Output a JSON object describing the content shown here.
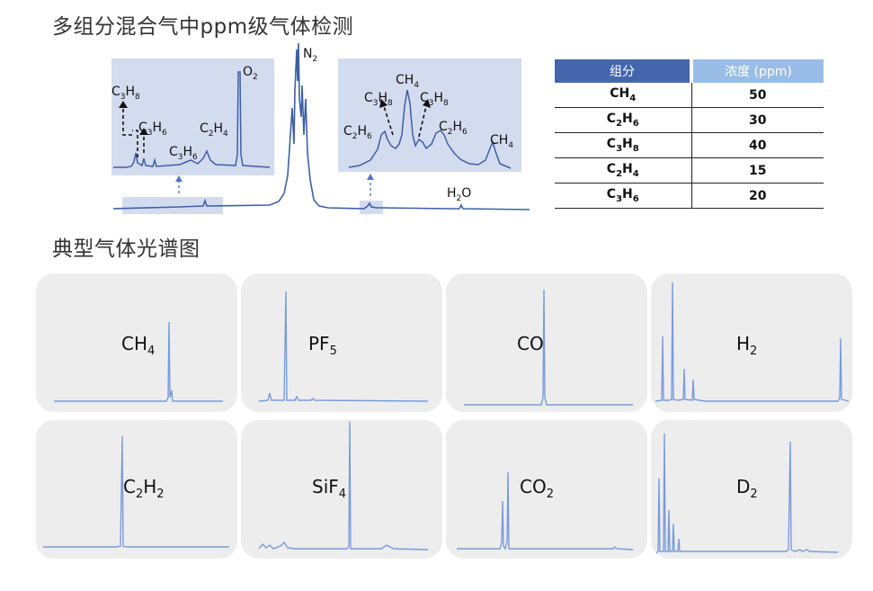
{
  "titles": {
    "main": "多组分混合气中ppm级气体检测",
    "gallery": "典型气体光谱图"
  },
  "colors": {
    "spectrum": "#3e5fa6",
    "highlight": "#d3dbef",
    "table_header_1": "#4566ad",
    "table_header_2": "#99bde6",
    "card_bg": "#ededed",
    "gallery_line": "#7a9bd8"
  },
  "main_spectrum": {
    "peak_labels": {
      "n2": "N2",
      "h2o": "H2O"
    },
    "left_inset_labels": {
      "o2": "O2",
      "c3h8": "C3H8",
      "c3h6_a": "C3H6",
      "c3h6_b": "C3H6",
      "c2h4": "C2H4"
    },
    "right_inset_labels": {
      "ch4_top": "CH4",
      "c3h8_a": "C3H8",
      "c3h8_b": "C3H8",
      "c2h6_a": "C2H6",
      "c2h6_b": "C2H6",
      "ch4_right": "CH4"
    }
  },
  "table": {
    "headers": [
      "组分",
      "浓度 (ppm)"
    ],
    "rows": [
      {
        "formula": "CH4",
        "value": "50"
      },
      {
        "formula": "C2H6",
        "value": "30"
      },
      {
        "formula": "C3H8",
        "value": "40"
      },
      {
        "formula": "C2H4",
        "value": "15"
      },
      {
        "formula": "C3H6",
        "value": "20"
      }
    ]
  },
  "chart_data": [
    {
      "type": "line",
      "title": "多组分混合气中ppm级气体检测",
      "description_series": "main mixture spectrum",
      "annotated_peaks": [
        "C3H8",
        "C3H6",
        "C3H6",
        "C2H4",
        "O2",
        "N2",
        "C2H6",
        "C3H8",
        "CH4",
        "C3H8",
        "C2H6",
        "CH4",
        "H2O"
      ]
    },
    {
      "type": "table",
      "columns": [
        "组分",
        "浓度 (ppm)"
      ],
      "rows": [
        [
          "CH4",
          50
        ],
        [
          "C2H6",
          30
        ],
        [
          "C3H8",
          40
        ],
        [
          "C2H4",
          15
        ],
        [
          "C3H6",
          20
        ]
      ]
    }
  ],
  "gallery": [
    {
      "formula": "CH4"
    },
    {
      "formula": "PF5"
    },
    {
      "formula": "CO"
    },
    {
      "formula": "H2"
    },
    {
      "formula": "C2H2"
    },
    {
      "formula": "SiF4"
    },
    {
      "formula": "CO2"
    },
    {
      "formula": "D2"
    }
  ]
}
